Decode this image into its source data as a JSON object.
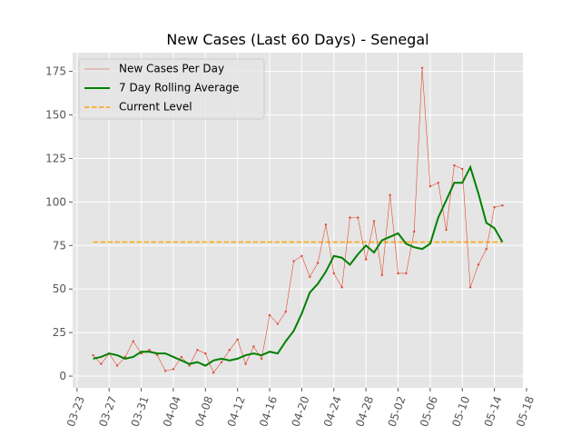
{
  "chart_data": {
    "type": "line",
    "title": "New Cases (Last 60 Days) - Senegal",
    "x": [
      "03-25",
      "03-26",
      "03-27",
      "03-28",
      "03-29",
      "03-30",
      "03-31",
      "04-01",
      "04-02",
      "04-03",
      "04-04",
      "04-05",
      "04-06",
      "04-07",
      "04-08",
      "04-09",
      "04-10",
      "04-11",
      "04-12",
      "04-13",
      "04-14",
      "04-15",
      "04-16",
      "04-17",
      "04-18",
      "04-19",
      "04-20",
      "04-21",
      "04-22",
      "04-23",
      "04-24",
      "04-25",
      "04-26",
      "04-27",
      "04-28",
      "04-29",
      "04-30",
      "05-01",
      "05-02",
      "05-03",
      "05-04",
      "05-05",
      "05-06",
      "05-07",
      "05-08",
      "05-09",
      "05-10",
      "05-11",
      "05-12",
      "05-13",
      "05-14",
      "05-15"
    ],
    "series": [
      {
        "name": "New Cases Per Day",
        "color": "#e24a33",
        "values": [
          12,
          7,
          13,
          6,
          11,
          20,
          13,
          15,
          12,
          3,
          4,
          11,
          6,
          15,
          13,
          2,
          8,
          15,
          21,
          7,
          17,
          10,
          35,
          30,
          37,
          66,
          69,
          57,
          65,
          87,
          59,
          51,
          91,
          91,
          67,
          89,
          58,
          104,
          59,
          59,
          83,
          177,
          109,
          111,
          84,
          121,
          119,
          51,
          64,
          73,
          97,
          98
        ]
      },
      {
        "name": "7 Day Rolling Average",
        "color": "#008000",
        "values": [
          10,
          11,
          13,
          12,
          10,
          11,
          14,
          14,
          13,
          13,
          11,
          9,
          7,
          8,
          6,
          9,
          10,
          9,
          10,
          12,
          13,
          12,
          14,
          13,
          20,
          26,
          36,
          48,
          53,
          60,
          69,
          68,
          64,
          70,
          75,
          71,
          78,
          80,
          82,
          76,
          74,
          73,
          76,
          91,
          101,
          111,
          111,
          120,
          105,
          88,
          85,
          77
        ]
      }
    ],
    "reference_line": {
      "name": "Current Level",
      "value": 77,
      "color": "#ffa500"
    },
    "ylim": [
      -6.75,
      185.75
    ],
    "yticks": [
      0,
      25,
      50,
      75,
      100,
      125,
      150,
      175
    ],
    "xticks": [
      "03-23",
      "03-27",
      "03-31",
      "04-04",
      "04-08",
      "04-12",
      "04-16",
      "04-20",
      "04-24",
      "04-28",
      "05-02",
      "05-06",
      "05-10",
      "05-14",
      "05-18"
    ],
    "grid": true,
    "legend": "upper left"
  }
}
